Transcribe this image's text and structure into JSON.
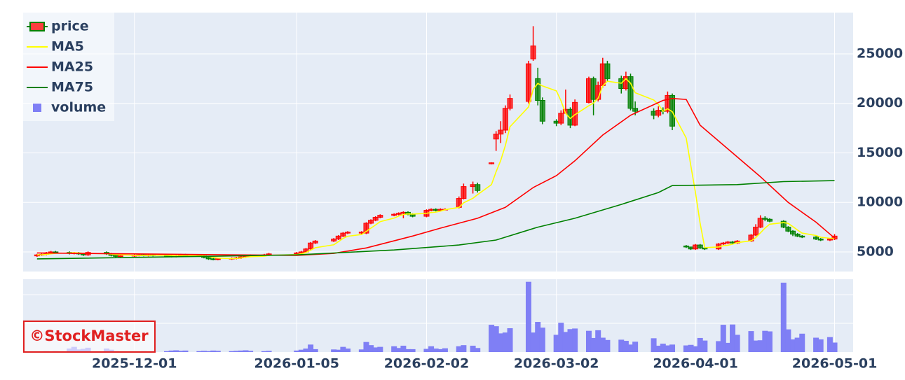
{
  "chart_data": {
    "type": "candlestick",
    "name": "price",
    "increasing_color": "#ff0000",
    "decreasing_color": "#008000",
    "x": [
      "2025-11-10",
      "2025-11-11",
      "2025-11-12",
      "2025-11-13",
      "2025-11-14",
      "2025-11-17",
      "2025-11-18",
      "2025-11-19",
      "2025-11-20",
      "2025-11-21",
      "2025-11-25",
      "2025-11-26",
      "2025-11-27",
      "2025-11-28",
      "2025-12-01",
      "2025-12-02",
      "2025-12-03",
      "2025-12-04",
      "2025-12-05",
      "2025-12-08",
      "2025-12-09",
      "2025-12-10",
      "2025-12-11",
      "2025-12-12",
      "2025-12-15",
      "2025-12-16",
      "2025-12-17",
      "2025-12-18",
      "2025-12-19",
      "2025-12-22",
      "2025-12-23",
      "2025-12-24",
      "2025-12-25",
      "2025-12-26",
      "2025-12-29",
      "2025-12-30",
      "2026-01-05",
      "2026-01-06",
      "2026-01-07",
      "2026-01-08",
      "2026-01-09",
      "2026-01-13",
      "2026-01-14",
      "2026-01-15",
      "2026-01-16",
      "2026-01-19",
      "2026-01-20",
      "2026-01-21",
      "2026-01-22",
      "2026-01-23",
      "2026-01-26",
      "2026-01-27",
      "2026-01-28",
      "2026-01-29",
      "2026-01-30",
      "2026-02-02",
      "2026-02-03",
      "2026-02-04",
      "2026-02-05",
      "2026-02-06",
      "2026-02-09",
      "2026-02-10",
      "2026-02-12",
      "2026-02-13",
      "2026-02-16",
      "2026-02-17",
      "2026-02-18",
      "2026-02-19",
      "2026-02-20",
      "2026-02-24",
      "2026-02-25",
      "2026-02-26",
      "2026-02-27",
      "2026-03-02",
      "2026-03-03",
      "2026-03-04",
      "2026-03-05",
      "2026-03-06",
      "2026-03-09",
      "2026-03-10",
      "2026-03-11",
      "2026-03-12",
      "2026-03-13",
      "2026-03-16",
      "2026-03-17",
      "2026-03-18",
      "2026-03-19",
      "2026-03-23",
      "2026-03-24",
      "2026-03-25",
      "2026-03-26",
      "2026-03-27",
      "2026-03-30",
      "2026-03-31",
      "2026-04-01",
      "2026-04-02",
      "2026-04-03",
      "2026-04-06",
      "2026-04-07",
      "2026-04-08",
      "2026-04-09",
      "2026-04-10",
      "2026-04-13",
      "2026-04-14",
      "2026-04-15",
      "2026-04-16",
      "2026-04-17",
      "2026-04-20",
      "2026-04-21",
      "2026-04-22",
      "2026-04-23",
      "2026-04-24",
      "2026-04-27",
      "2026-04-28",
      "2026-04-30",
      "2026-05-01"
    ],
    "open": [
      4600,
      4700,
      4750,
      4900,
      5000,
      4950,
      4850,
      4900,
      4800,
      4700,
      4950,
      4800,
      4650,
      4550,
      4600,
      4650,
      4700,
      4650,
      4700,
      4650,
      4600,
      4550,
      4600,
      4700,
      4650,
      4600,
      4450,
      4300,
      4250,
      4300,
      4350,
      4400,
      4500,
      4600,
      4650,
      4700,
      4800,
      4900,
      5000,
      5300,
      5900,
      6100,
      6300,
      6600,
      6900,
      6900,
      6900,
      7900,
      8200,
      8500,
      8700,
      8800,
      8900,
      9000,
      8800,
      8600,
      9200,
      9300,
      9200,
      9300,
      9500,
      10400,
      11600,
      11800,
      13900,
      16400,
      16900,
      17300,
      19500,
      20200,
      24500,
      22500,
      20300,
      18200,
      18000,
      19000,
      19400,
      17800,
      20100,
      22500,
      20400,
      21800,
      24000,
      22500,
      21500,
      22700,
      19500,
      19200,
      18800,
      19300,
      19200,
      20800,
      5600,
      5500,
      5300,
      5700,
      5400,
      5300,
      5800,
      5900,
      6000,
      5900,
      6100,
      6700,
      7500,
      8400,
      8300,
      8100,
      7500,
      7100,
      6800,
      6600,
      6500,
      6300,
      6200,
      6300
    ],
    "high": [
      4800,
      4850,
      5000,
      5100,
      5100,
      5050,
      5000,
      5000,
      4900,
      5050,
      5050,
      4900,
      4750,
      4700,
      4750,
      4800,
      4800,
      4800,
      4800,
      4750,
      4700,
      4700,
      4800,
      4800,
      4750,
      4700,
      4550,
      4400,
      4400,
      4450,
      4500,
      4600,
      4700,
      4750,
      4800,
      4900,
      5000,
      5100,
      5400,
      6000,
      6200,
      6400,
      6700,
      7000,
      7100,
      7100,
      8000,
      8300,
      8600,
      8800,
      8900,
      9000,
      9100,
      9100,
      8900,
      9300,
      9400,
      9400,
      9400,
      9400,
      10600,
      11900,
      12100,
      12000,
      14050,
      17200,
      18200,
      19800,
      20900,
      24300,
      27800,
      23600,
      20600,
      18400,
      19300,
      21400,
      19600,
      20400,
      22700,
      22700,
      22200,
      24600,
      24300,
      22800,
      23200,
      23000,
      20200,
      19500,
      19700,
      19600,
      21200,
      21000,
      5700,
      5500,
      5800,
      5800,
      5500,
      5900,
      6000,
      6100,
      6100,
      6200,
      6800,
      7800,
      8700,
      8600,
      8400,
      8200,
      7600,
      7200,
      6900,
      6700,
      6600,
      6400,
      6400,
      6800
    ],
    "low": [
      4500,
      4600,
      4650,
      4800,
      4850,
      4750,
      4750,
      4700,
      4600,
      4600,
      4700,
      4550,
      4450,
      4450,
      4500,
      4550,
      4550,
      4550,
      4550,
      4500,
      4450,
      4450,
      4500,
      4550,
      4500,
      4350,
      4200,
      4150,
      4150,
      4200,
      4250,
      4300,
      4400,
      4500,
      4550,
      4600,
      4700,
      4800,
      4900,
      5200,
      5800,
      6000,
      6200,
      6500,
      6800,
      6800,
      6800,
      7800,
      8100,
      8400,
      8600,
      8700,
      8400,
      8700,
      8500,
      8500,
      9100,
      9100,
      9100,
      9200,
      9400,
      10300,
      10900,
      11000,
      13850,
      15200,
      16000,
      17000,
      19300,
      20000,
      24300,
      19800,
      17900,
      17700,
      17800,
      19200,
      17500,
      17700,
      20000,
      18800,
      20200,
      21600,
      22200,
      21000,
      21300,
      19300,
      18800,
      18400,
      18600,
      18900,
      19000,
      17300,
      5400,
      5200,
      5200,
      5300,
      5200,
      5200,
      5700,
      5800,
      5800,
      5800,
      6000,
      6600,
      7400,
      8100,
      8000,
      7400,
      7000,
      6600,
      6500,
      6400,
      6200,
      6100,
      6100,
      6200
    ],
    "close": [
      4700,
      4750,
      4900,
      5000,
      4950,
      4850,
      4900,
      4800,
      4700,
      4950,
      4800,
      4650,
      4550,
      4600,
      4650,
      4700,
      4650,
      4700,
      4650,
      4600,
      4550,
      4600,
      4700,
      4650,
      4600,
      4450,
      4300,
      4250,
      4300,
      4350,
      4400,
      4500,
      4600,
      4650,
      4700,
      4800,
      4900,
      5000,
      5300,
      5900,
      6100,
      6300,
      6600,
      6900,
      7000,
      7000,
      7900,
      8200,
      8500,
      8700,
      8800,
      8900,
      9000,
      8800,
      8600,
      9200,
      9300,
      9200,
      9300,
      9300,
      10400,
      11600,
      11800,
      11200,
      14000,
      16900,
      17300,
      19500,
      20500,
      24000,
      25800,
      20300,
      18200,
      18000,
      19000,
      19400,
      17800,
      20100,
      22500,
      20400,
      21800,
      24000,
      22500,
      21500,
      22700,
      19500,
      19200,
      18800,
      19300,
      19200,
      20800,
      17700,
      5500,
      5300,
      5700,
      5400,
      5300,
      5800,
      5900,
      6000,
      5900,
      6100,
      6700,
      7500,
      8400,
      8300,
      8100,
      7500,
      7100,
      6800,
      6600,
      6500,
      6300,
      6200,
      6300,
      6600
    ],
    "series": [
      {
        "name": "MA5",
        "color": "#ffff00",
        "values": [
          4700,
          4710,
          4750,
          4810,
          4860,
          4890,
          4920,
          4900,
          4840,
          4840,
          4830,
          4780,
          4730,
          4710,
          4650,
          4630,
          4630,
          4660,
          4670,
          4660,
          4640,
          4620,
          4620,
          4620,
          4620,
          4600,
          4540,
          4450,
          4380,
          4330,
          4340,
          4390,
          4470,
          4520,
          4570,
          4650,
          4730,
          4810,
          4940,
          5180,
          5420,
          5720,
          6040,
          6360,
          6580,
          6760,
          7080,
          7400,
          7720,
          8060,
          8420,
          8620,
          8780,
          8840,
          8820,
          8900,
          8980,
          9020,
          9120,
          9260,
          9500,
          9960,
          10420,
          10780,
          11800,
          13100,
          14240,
          15740,
          17640,
          19640,
          21420,
          22020,
          21760,
          21260,
          20260,
          18980,
          18480,
          18860,
          19760,
          20040,
          20520,
          21760,
          22240,
          22040,
          22500,
          22040,
          21080,
          20340,
          19900,
          19200,
          19460,
          19160,
          16500,
          13700,
          11000,
          7920,
          5440,
          5500,
          5620,
          5680,
          5780,
          5940,
          6120,
          6440,
          6920,
          7400,
          7800,
          7960,
          7880,
          7560,
          7220,
          6900,
          6660,
          6480,
          6380,
          6380
        ]
      },
      {
        "name": "MA25",
        "color": "#ff0000",
        "x": [
          "2025-11-10",
          "2025-12-01",
          "2025-12-22",
          "2026-01-05",
          "2026-01-13",
          "2026-01-20",
          "2026-01-30",
          "2026-02-05",
          "2026-02-13",
          "2026-02-19",
          "2026-02-25",
          "2026-03-02",
          "2026-03-06",
          "2026-03-12",
          "2026-03-18",
          "2026-03-25",
          "2026-03-27",
          "2026-03-30",
          "2026-04-02",
          "2026-04-09",
          "2026-04-15",
          "2026-04-21",
          "2026-04-27",
          "2026-05-01"
        ],
        "values": [
          4900,
          4800,
          4700,
          4650,
          4850,
          5400,
          6600,
          7400,
          8400,
          9500,
          11500,
          12700,
          14200,
          16800,
          18800,
          20300,
          20500,
          20400,
          17800,
          15000,
          12600,
          10000,
          8000,
          6400
        ]
      },
      {
        "name": "MA75",
        "color": "#008000",
        "x": [
          "2025-11-10",
          "2025-12-15",
          "2026-01-05",
          "2026-01-26",
          "2026-02-09",
          "2026-02-17",
          "2026-02-26",
          "2026-03-06",
          "2026-03-16",
          "2026-03-24",
          "2026-03-27",
          "2026-04-10",
          "2026-04-20",
          "2026-05-01"
        ],
        "values": [
          4300,
          4550,
          4700,
          5200,
          5700,
          6200,
          7500,
          8400,
          9800,
          11000,
          11700,
          11800,
          12100,
          12200
        ]
      }
    ],
    "volume": {
      "name": "volume",
      "color": "#7f7ff5",
      "ylim": [
        0,
        25.4
      ],
      "yticks": [
        10,
        20
      ],
      "values": [
        0.2,
        0.2,
        0.3,
        0.2,
        0.3,
        1.2,
        1.8,
        0.9,
        1.1,
        1.5,
        1.2,
        0.8,
        0.3,
        0.2,
        0.2,
        0.2,
        0.3,
        0.2,
        0.3,
        0.3,
        0.5,
        0.6,
        0.4,
        0.5,
        0.3,
        0.4,
        0.3,
        0.5,
        0.4,
        0.3,
        0.4,
        0.5,
        0.6,
        0.4,
        0.3,
        0.4,
        0.5,
        0.8,
        1.2,
        2.6,
        1.0,
        0.9,
        0.8,
        1.8,
        1.2,
        0.9,
        3.5,
        2.4,
        1.6,
        1.8,
        2.0,
        1.4,
        2.2,
        1.0,
        1.0,
        1.1,
        2.0,
        1.2,
        1.0,
        1.3,
        2.0,
        2.4,
        2.2,
        1.4,
        9.5,
        9.0,
        6.5,
        6.8,
        8.3,
        24.5,
        6.8,
        10.5,
        8.5,
        6.0,
        10.2,
        7.0,
        8.0,
        8.2,
        7.4,
        4.9,
        7.6,
        5.0,
        4.2,
        4.3,
        3.9,
        2.6,
        3.6,
        4.8,
        2.2,
        2.9,
        2.3,
        2.6,
        2.3,
        2.5,
        2.0,
        4.9,
        4.0,
        3.8,
        9.5,
        3.2,
        9.6,
        6.0,
        7.3,
        4.0,
        4.1,
        7.4,
        7.2,
        24.2,
        7.9,
        4.4,
        5.0,
        6.4,
        5.0,
        4.4,
        5.2,
        3.3
      ]
    },
    "xlim": [
      "2025-11-07",
      "2026-05-05"
    ],
    "xticks": [
      "2025-12-01",
      "2026-01-05",
      "2026-02-02",
      "2026-03-02",
      "2026-04-01",
      "2026-05-01"
    ],
    "ylim": [
      3020,
      29170
    ],
    "yticks": [
      5000,
      10000,
      15000,
      20000,
      25000
    ],
    "grid": true,
    "legend": "upper left",
    "watermark": "©StockMaster"
  }
}
